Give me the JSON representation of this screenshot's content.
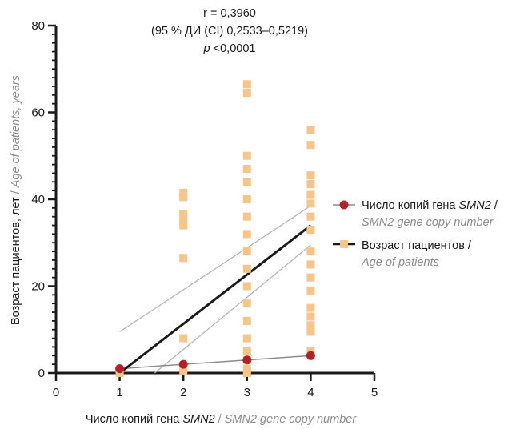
{
  "chart_data": {
    "type": "scatter",
    "annotation": {
      "line1": "r = 0,3960",
      "line2": "(95 % ДИ (CI) 0,2533–0,5219)",
      "line3_italic": "p",
      "line3_rest": " <0,0001"
    },
    "xlabel": {
      "ru_prefix": "Число копий гена ",
      "ru_gene": "SMN2",
      "sep": " / ",
      "en": "SMN2 gene copy number"
    },
    "ylabel": {
      "ru": "Возраст пациентов, лет",
      "sep": " / ",
      "en": "Age of patients, years"
    },
    "xlim": [
      0,
      5
    ],
    "ylim": [
      0,
      80
    ],
    "x_ticks": [
      "0",
      "1",
      "2",
      "3",
      "4",
      "5"
    ],
    "y_ticks": [
      "0",
      "20",
      "40",
      "60",
      "80"
    ],
    "grid": false,
    "legend_position": "right",
    "legend": [
      {
        "ru_prefix": "Число копий гена ",
        "ru_gene": "SMN2",
        "ru_suffix": " /",
        "en": "SMN2 gene copy number",
        "marker": "circle",
        "color": "#b52025"
      },
      {
        "ru": "Возраст пациентов /",
        "en": "Age of patients",
        "marker": "square",
        "color": "#f7c48a"
      }
    ],
    "series": [
      {
        "marker": "square",
        "color": "#f7c48a",
        "points": [
          [
            1,
            0.5
          ],
          [
            1,
            0
          ],
          [
            2,
            41.5
          ],
          [
            2,
            40.5
          ],
          [
            2,
            36.5
          ],
          [
            2,
            35
          ],
          [
            2,
            34
          ],
          [
            2,
            26.5
          ],
          [
            2,
            8
          ],
          [
            2,
            1.5
          ],
          [
            2,
            0.5
          ],
          [
            3,
            66.5
          ],
          [
            3,
            64.5
          ],
          [
            3,
            50
          ],
          [
            3,
            47
          ],
          [
            3,
            44
          ],
          [
            3,
            40
          ],
          [
            3,
            36
          ],
          [
            3,
            32
          ],
          [
            3,
            28
          ],
          [
            3,
            24
          ],
          [
            3,
            20
          ],
          [
            3,
            16
          ],
          [
            3,
            12
          ],
          [
            3,
            8
          ],
          [
            3,
            5
          ],
          [
            3,
            3
          ],
          [
            3,
            1
          ],
          [
            3,
            0
          ],
          [
            4,
            56
          ],
          [
            4,
            52.5
          ],
          [
            4,
            45.5
          ],
          [
            4,
            43.5
          ],
          [
            4,
            41
          ],
          [
            4,
            39
          ],
          [
            4,
            36
          ],
          [
            4,
            33
          ],
          [
            4,
            28
          ],
          [
            4,
            25
          ],
          [
            4,
            22
          ],
          [
            4,
            19
          ],
          [
            4,
            15
          ],
          [
            4,
            13
          ],
          [
            4,
            11
          ],
          [
            4,
            9.5
          ],
          [
            4,
            5
          ]
        ]
      },
      {
        "marker": "circle",
        "color": "#b52025",
        "points": [
          [
            1,
            1
          ],
          [
            2,
            2
          ],
          [
            3,
            3
          ],
          [
            4,
            4
          ]
        ]
      }
    ],
    "regression_age": {
      "x": [
        1,
        4
      ],
      "y": [
        0,
        34
      ],
      "color": "#1a1a1a"
    },
    "ci_upper": {
      "x": [
        1,
        4
      ],
      "y": [
        9.5,
        38.5
      ],
      "color": "#b0b0b0"
    },
    "ci_lower": {
      "x": [
        1.55,
        4
      ],
      "y": [
        0,
        29.5
      ],
      "color": "#b0b0b0"
    },
    "copy_line": {
      "x": [
        1,
        4
      ],
      "y": [
        1,
        4
      ],
      "color": "#8c8c8c"
    }
  }
}
